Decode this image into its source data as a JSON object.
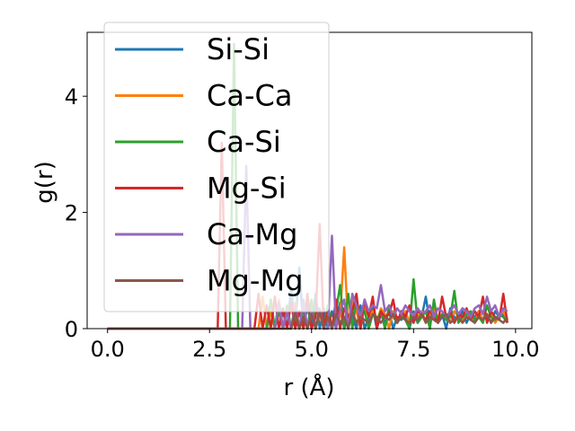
{
  "chart_data": {
    "type": "line",
    "title": "",
    "xlabel": "r (Å)",
    "ylabel": "g(r)",
    "xlim": [
      -0.5,
      10.4
    ],
    "ylim": [
      0,
      5.1
    ],
    "xticks": [
      0.0,
      2.5,
      5.0,
      7.5,
      10.0
    ],
    "xtick_labels": [
      "0.0",
      "2.5",
      "5.0",
      "7.5",
      "10.0"
    ],
    "yticks": [
      0,
      2,
      4
    ],
    "ytick_labels": [
      "0",
      "2",
      "4"
    ],
    "grid": false,
    "legend_position": "top-left",
    "series": [
      {
        "name": "Si-Si",
        "color": "#1f77b4",
        "x": [
          0,
          4.0,
          4.1,
          4.2,
          4.3,
          4.4,
          4.5,
          4.6,
          4.7,
          4.8,
          4.9,
          5.0,
          5.1,
          5.2,
          5.3,
          5.4,
          5.5,
          5.6,
          5.7,
          5.8,
          5.9,
          6.0,
          6.1,
          6.2,
          6.3,
          6.4,
          6.5,
          6.6,
          6.7,
          6.8,
          6.9,
          7.0,
          7.1,
          7.2,
          7.3,
          7.4,
          7.5,
          7.6,
          7.7,
          7.8,
          7.9,
          8.0,
          8.1,
          8.2,
          8.3,
          8.4,
          8.5,
          8.6,
          8.7,
          8.8,
          8.9,
          9.0,
          9.1,
          9.2,
          9.3,
          9.4,
          9.5,
          9.6,
          9.7,
          9.8
        ],
        "y": [
          0,
          0,
          0.55,
          0,
          0.3,
          0,
          0.7,
          0,
          1.05,
          0,
          0.4,
          0,
          0.6,
          0,
          0.35,
          0,
          0.3,
          0,
          0.45,
          0,
          0.25,
          0.2,
          0,
          0.4,
          0,
          0.2,
          0.35,
          0,
          0.25,
          0.1,
          0.3,
          0,
          0.2,
          0.15,
          0.25,
          0,
          0.3,
          0.1,
          0.2,
          0.55,
          0.1,
          0.3,
          0.15,
          0.25,
          0,
          0.35,
          0.2,
          0.15,
          0.3,
          0.1,
          0.25,
          0.2,
          0.3,
          0.15,
          0.25,
          0.1,
          0.3,
          0.2,
          0.25,
          0.15
        ]
      },
      {
        "name": "Ca-Ca",
        "color": "#ff7f0e",
        "x": [
          0,
          3.5,
          3.6,
          3.7,
          3.8,
          3.9,
          4.0,
          4.1,
          4.2,
          4.3,
          4.4,
          4.5,
          4.6,
          4.7,
          4.8,
          4.9,
          5.0,
          5.1,
          5.2,
          5.3,
          5.4,
          5.5,
          5.6,
          5.7,
          5.8,
          5.9,
          6.0,
          6.1,
          6.2,
          6.3,
          6.4,
          6.5,
          6.6,
          6.7,
          6.8,
          6.9,
          7.0,
          7.1,
          7.2,
          7.3,
          7.4,
          7.5,
          7.6,
          7.7,
          7.8,
          7.9,
          8.0,
          8.1,
          8.2,
          8.3,
          8.4,
          8.5,
          8.6,
          8.7,
          8.8,
          8.9,
          9.0,
          9.1,
          9.2,
          9.3,
          9.4,
          9.5,
          9.6,
          9.7,
          9.8
        ],
        "y": [
          0,
          0,
          0,
          0,
          0.55,
          0,
          0.3,
          0,
          0.5,
          0,
          0.35,
          0,
          0.45,
          0,
          0.3,
          0,
          0.4,
          0,
          0.25,
          0,
          0.35,
          0,
          0.3,
          0.2,
          1.4,
          0,
          0.5,
          0.3,
          0,
          0.4,
          0.2,
          0.3,
          0.1,
          0.35,
          0.25,
          0,
          0.3,
          0.15,
          0.2,
          0.3,
          0.1,
          0.25,
          0.2,
          0.3,
          0.1,
          0.2,
          0.35,
          0.15,
          0.25,
          0.2,
          0.1,
          0.3,
          0.2,
          0.15,
          0.25,
          0.2,
          0.1,
          0.3,
          0.15,
          0.2,
          0.25,
          0.1,
          0.2,
          0.3,
          0.15
        ]
      },
      {
        "name": "Ca-Si",
        "color": "#2ca02c",
        "x": [
          0,
          2.9,
          3.0,
          3.1,
          3.2,
          3.3,
          3.4,
          3.5,
          3.6,
          3.7,
          3.8,
          3.9,
          4.0,
          4.1,
          4.2,
          4.3,
          4.4,
          4.5,
          4.6,
          4.7,
          4.8,
          4.9,
          5.0,
          5.1,
          5.2,
          5.3,
          5.4,
          5.5,
          5.6,
          5.7,
          5.8,
          5.9,
          6.0,
          6.1,
          6.2,
          6.3,
          6.4,
          6.5,
          6.6,
          6.7,
          6.8,
          6.9,
          7.0,
          7.1,
          7.2,
          7.3,
          7.4,
          7.5,
          7.6,
          7.7,
          7.8,
          7.9,
          8.0,
          8.1,
          8.2,
          8.3,
          8.4,
          8.5,
          8.6,
          8.7,
          8.8,
          8.9,
          9.0,
          9.1,
          9.2,
          9.3,
          9.4,
          9.5,
          9.6,
          9.7,
          9.8
        ],
        "y": [
          0,
          0,
          0,
          4.9,
          0,
          0,
          0,
          0,
          0,
          0,
          0,
          0,
          0.5,
          0,
          0.3,
          0,
          0.4,
          0,
          0.2,
          0,
          0.35,
          0,
          0.5,
          0,
          0.3,
          0,
          0.4,
          0,
          0.3,
          0.75,
          0,
          0.6,
          0,
          0.5,
          0.2,
          0.3,
          0,
          0.25,
          0.15,
          0.3,
          0,
          0.4,
          0.2,
          0.1,
          0.3,
          0.15,
          0,
          0.85,
          0.1,
          0.2,
          0.3,
          0,
          0.5,
          0.1,
          0.25,
          0.15,
          0.2,
          0.65,
          0.1,
          0.2,
          0.25,
          0.3,
          0.15,
          0.2,
          0.1,
          0.4,
          0.2,
          0.15,
          0.25,
          0.2,
          0.1
        ]
      },
      {
        "name": "Mg-Si",
        "color": "#d62728",
        "x": [
          0,
          2.6,
          2.7,
          2.8,
          2.9,
          3.0,
          3.1,
          3.2,
          3.3,
          3.4,
          3.5,
          3.6,
          3.7,
          3.8,
          3.9,
          4.0,
          4.1,
          4.2,
          4.3,
          4.4,
          4.5,
          4.6,
          4.7,
          4.8,
          4.9,
          5.0,
          5.1,
          5.2,
          5.3,
          5.4,
          5.5,
          5.6,
          5.7,
          5.8,
          5.9,
          6.0,
          6.1,
          6.2,
          6.3,
          6.4,
          6.5,
          6.6,
          6.7,
          6.8,
          6.9,
          7.0,
          7.1,
          7.2,
          7.3,
          7.4,
          7.5,
          7.6,
          7.7,
          7.8,
          7.9,
          8.0,
          8.1,
          8.2,
          8.3,
          8.4,
          8.5,
          8.6,
          8.7,
          8.8,
          8.9,
          9.0,
          9.1,
          9.2,
          9.3,
          9.4,
          9.5,
          9.6,
          9.7,
          9.8
        ],
        "y": [
          0,
          0,
          0,
          3.2,
          0,
          0,
          0,
          0,
          0,
          0,
          0,
          0,
          0.6,
          0,
          0.4,
          0,
          0.55,
          0,
          0.35,
          0,
          0.45,
          0,
          0.3,
          0,
          0.6,
          0,
          0.2,
          1.8,
          0,
          0.3,
          0,
          0.5,
          0,
          0.35,
          0.2,
          0.3,
          0.6,
          0,
          0.5,
          0.2,
          0.55,
          0,
          0.3,
          0.2,
          0.25,
          0.5,
          0.1,
          0.3,
          0.2,
          0.4,
          0.1,
          0.3,
          0.25,
          0.15,
          0.3,
          0.2,
          0.1,
          0.55,
          0.2,
          0.3,
          0.1,
          0.25,
          0.2,
          0.35,
          0.15,
          0.3,
          0.2,
          0.55,
          0.1,
          0.3,
          0.2,
          0.15,
          0.6,
          0.1
        ]
      },
      {
        "name": "Ca-Mg",
        "color": "#9467bd",
        "x": [
          0,
          3.3,
          3.4,
          3.5,
          3.6,
          3.7,
          3.8,
          3.9,
          4.0,
          4.1,
          4.2,
          4.3,
          4.4,
          4.5,
          4.6,
          4.7,
          4.8,
          4.9,
          5.0,
          5.1,
          5.2,
          5.3,
          5.4,
          5.5,
          5.6,
          5.7,
          5.8,
          5.9,
          6.0,
          6.1,
          6.2,
          6.3,
          6.4,
          6.5,
          6.6,
          6.7,
          6.8,
          6.9,
          7.0,
          7.1,
          7.2,
          7.3,
          7.4,
          7.5,
          7.6,
          7.7,
          7.8,
          7.9,
          8.0,
          8.1,
          8.2,
          8.3,
          8.4,
          8.5,
          8.6,
          8.7,
          8.8,
          8.9,
          9.0,
          9.1,
          9.2,
          9.3,
          9.4,
          9.5,
          9.6,
          9.7,
          9.8
        ],
        "y": [
          0,
          0,
          2.8,
          0,
          0,
          0,
          0,
          0,
          0,
          0,
          0.45,
          0,
          0.3,
          0,
          0.4,
          0,
          0.5,
          0,
          0.3,
          0,
          0.35,
          0,
          0,
          1.6,
          0,
          0.3,
          0.5,
          0,
          0.6,
          0.4,
          0.2,
          0.5,
          0.3,
          0.4,
          0.35,
          0.75,
          0.3,
          0.4,
          0.2,
          0.35,
          0.25,
          0.4,
          0.3,
          0.2,
          0.35,
          0.25,
          0.3,
          0.4,
          0.2,
          0.35,
          0.3,
          0.2,
          0.3,
          0.4,
          0.25,
          0.35,
          0.3,
          0.2,
          0.35,
          0.4,
          0.25,
          0.55,
          0.3,
          0.4,
          0.2,
          0.35,
          0.3
        ]
      },
      {
        "name": "Mg-Mg",
        "color": "#8c564b",
        "x": [
          0,
          4.5,
          4.6,
          4.7,
          4.8,
          4.9,
          5.0,
          5.1,
          5.2,
          5.3,
          5.4,
          5.5,
          5.6,
          5.7,
          5.8,
          5.9,
          6.0,
          6.1,
          6.2,
          6.3,
          6.4,
          6.5,
          6.6,
          6.7,
          6.8,
          6.9,
          7.0,
          7.1,
          7.2,
          7.3,
          7.4,
          7.5,
          7.6,
          7.7,
          7.8,
          7.9,
          8.0,
          8.1,
          8.2,
          8.3,
          8.4,
          8.5,
          8.6,
          8.7,
          8.8,
          8.9,
          9.0,
          9.1,
          9.2,
          9.3,
          9.4,
          9.5,
          9.6,
          9.7,
          9.8
        ],
        "y": [
          0,
          0,
          0.3,
          0,
          0.2,
          0,
          0.25,
          0,
          0.3,
          0,
          0.2,
          0,
          0.25,
          0.1,
          0.2,
          0,
          0.3,
          0.1,
          0.2,
          0.15,
          0.1,
          0.25,
          0.2,
          0.1,
          0.2,
          0.15,
          0.25,
          0.1,
          0.2,
          0.15,
          0.1,
          0.2,
          0.15,
          0.25,
          0.1,
          0.2,
          0.15,
          0.1,
          0.2,
          0.25,
          0.1,
          0.15,
          0.2,
          0.1,
          0.2,
          0.15,
          0.1,
          0.2,
          0.15,
          0.25,
          0.1,
          0.2,
          0.15,
          0.1,
          0.2
        ]
      }
    ]
  }
}
